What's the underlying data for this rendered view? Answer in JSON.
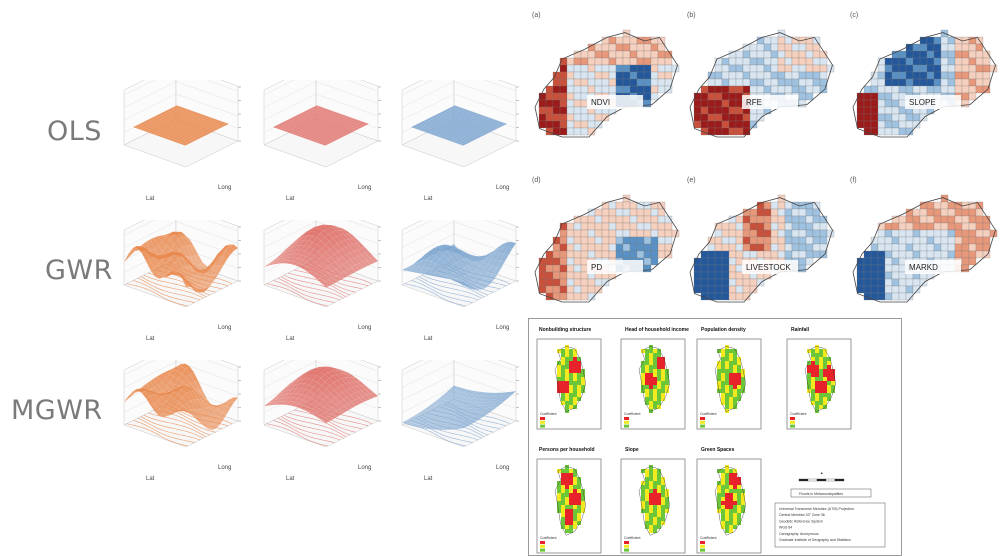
{
  "row_labels": [
    "OLS",
    "GWR",
    "MGWR"
  ],
  "surface_axis": {
    "lat": "Lat",
    "long": "Long"
  },
  "surface_colors": {
    "orange": "#e8864a",
    "red": "#e0766f",
    "blue": "#7da5cf"
  },
  "choropleth": {
    "panels": [
      {
        "letter": "(a)",
        "var": "NDVI"
      },
      {
        "letter": "(b)",
        "var": "RFE"
      },
      {
        "letter": "(c)",
        "var": "SLOPE"
      },
      {
        "letter": "(d)",
        "var": "PD"
      },
      {
        "letter": "(e)",
        "var": "LIVESTOCK"
      },
      {
        "letter": "(f)",
        "var": "MARKD"
      }
    ]
  },
  "coef_maps": {
    "titles": [
      "Nonbuilding structure",
      "Head of household income",
      "Population density",
      "Rainfall",
      "Persons per household",
      "Slope",
      "Green Spaces"
    ],
    "legend_heading": "Coefficient",
    "legend_box": "Floods in Metamunicipalities",
    "colophon": [
      "Universal Transverse Mercator (UTM) Projection",
      "Central Meridian 33° Zone 36",
      "Geodetic Reference System",
      "WGS 84",
      "Cartography: Anonymous",
      "Graduate Institute of Geography and Statistics"
    ],
    "colors": {
      "red": "#e8222a",
      "yellow": "#f2ea1f",
      "green": "#6cc63a"
    }
  }
}
